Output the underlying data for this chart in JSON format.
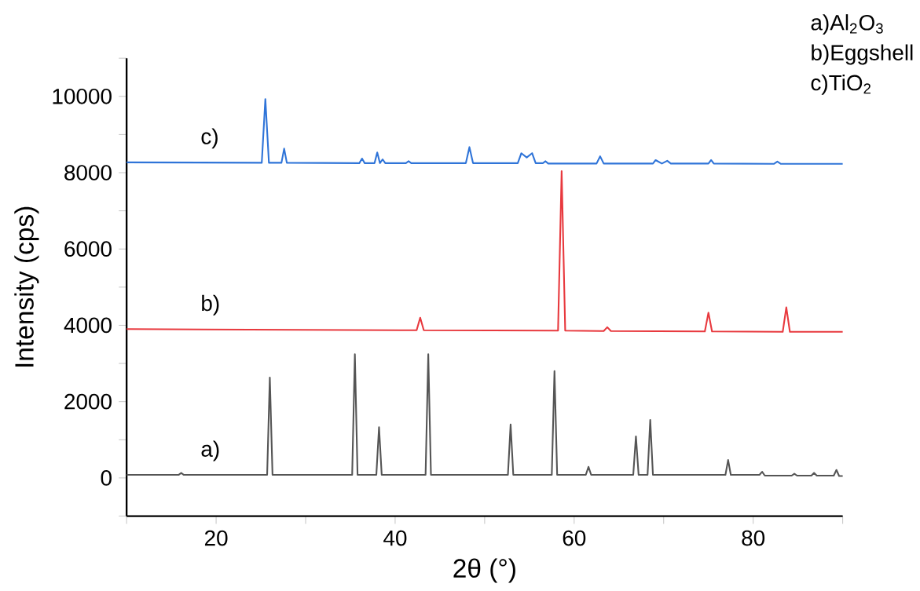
{
  "chart_data": {
    "type": "line",
    "xlabel": "2θ (°)",
    "ylabel": "Intensity (cps)",
    "xlim": [
      10,
      90
    ],
    "xticks": [
      {
        "value": 10,
        "label": null
      },
      20,
      {
        "value": 30,
        "label": null
      },
      40,
      {
        "value": 50,
        "label": null
      },
      60,
      {
        "value": 70,
        "label": null
      },
      80,
      {
        "value": 90,
        "label": null
      }
    ],
    "ylim": [
      -1000,
      11000
    ],
    "yticks": [
      {
        "value": -1000,
        "label": null
      },
      0,
      {
        "value": 1000,
        "label": null
      },
      2000,
      {
        "value": 3000,
        "label": null
      },
      4000,
      {
        "value": 5000,
        "label": null
      },
      6000,
      {
        "value": 7000,
        "label": null
      },
      8000,
      {
        "value": 9000,
        "label": null
      },
      10000,
      {
        "value": 11000,
        "label": null
      }
    ],
    "grid": false,
    "marker": "none",
    "line_style": "solid",
    "series": [
      {
        "color": "#555555",
        "x": [
          10,
          15.8,
          16.1,
          16.4,
          25.7,
          26.0,
          26.3,
          35.2,
          35.5,
          35.8,
          37.9,
          38.2,
          38.5,
          43.4,
          43.7,
          44.0,
          52.6,
          52.9,
          53.2,
          57.5,
          57.8,
          58.1,
          61.3,
          61.6,
          61.9,
          66.6,
          66.9,
          67.2,
          68.2,
          68.5,
          68.8,
          76.9,
          77.2,
          77.5,
          80.7,
          81.0,
          81.3,
          84.3,
          84.6,
          84.9,
          86.5,
          86.8,
          87.1,
          89.0,
          89.3,
          89.6,
          90
        ],
        "values": [
          80,
          80,
          130,
          80,
          80,
          2630,
          80,
          80,
          3240,
          80,
          80,
          1330,
          80,
          80,
          3240,
          80,
          80,
          1400,
          80,
          80,
          2800,
          80,
          80,
          290,
          80,
          80,
          1090,
          80,
          80,
          1520,
          80,
          80,
          470,
          80,
          80,
          160,
          60,
          60,
          110,
          60,
          60,
          130,
          60,
          60,
          210,
          50,
          50
        ]
      },
      {
        "color": "#e8393e",
        "x": [
          10,
          42.4,
          42.8,
          43.2,
          58.2,
          58.6,
          59.0,
          63.3,
          63.7,
          64.1,
          74.6,
          75.0,
          75.4,
          83.3,
          83.7,
          84.1,
          90
        ],
        "values": [
          3900,
          3870,
          4200,
          3870,
          3860,
          8040,
          3860,
          3850,
          3950,
          3850,
          3840,
          4330,
          3840,
          3830,
          4470,
          3830,
          3830
        ]
      },
      {
        "color": "#2f74d8",
        "x": [
          10,
          25.1,
          25.5,
          25.9,
          27.3,
          27.6,
          27.9,
          36.0,
          36.3,
          36.6,
          37.7,
          38.0,
          38.3,
          38.6,
          38.9,
          41.2,
          41.5,
          41.8,
          47.9,
          48.3,
          48.7,
          53.7,
          54.1,
          54.7,
          55.3,
          55.7,
          56.5,
          56.8,
          57.1,
          62.5,
          62.9,
          63.3,
          68.8,
          69.1,
          69.8,
          70.4,
          70.8,
          75.0,
          75.3,
          75.6,
          82.3,
          82.7,
          83.1,
          90
        ],
        "values": [
          8270,
          8260,
          9930,
          8260,
          8260,
          8630,
          8260,
          8250,
          8370,
          8250,
          8250,
          8530,
          8250,
          8350,
          8250,
          8250,
          8300,
          8250,
          8250,
          8670,
          8250,
          8250,
          8510,
          8400,
          8510,
          8250,
          8250,
          8300,
          8240,
          8240,
          8430,
          8240,
          8240,
          8330,
          8240,
          8310,
          8240,
          8240,
          8330,
          8240,
          8230,
          8290,
          8230,
          8230
        ]
      }
    ],
    "annotations": [
      "a)",
      "b)",
      "c)",
      "a)Al$_{2}$O$_{3}$",
      "b)Eggshell",
      "c)TiO$_{2}$"
    ]
  }
}
